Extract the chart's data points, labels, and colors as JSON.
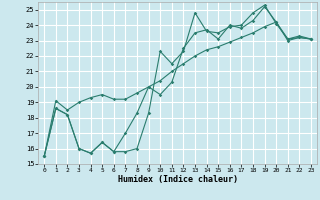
{
  "xlabel": "Humidex (Indice chaleur)",
  "background_color": "#cce8ee",
  "grid_color": "#ffffff",
  "line_color": "#2a7d6e",
  "xlim": [
    -0.5,
    23.5
  ],
  "ylim": [
    15,
    25.5
  ],
  "xticks": [
    0,
    1,
    2,
    3,
    4,
    5,
    6,
    7,
    8,
    9,
    10,
    11,
    12,
    13,
    14,
    15,
    16,
    17,
    18,
    19,
    20,
    21,
    22,
    23
  ],
  "yticks": [
    15,
    16,
    17,
    18,
    19,
    20,
    21,
    22,
    23,
    24,
    25
  ],
  "s1_x": [
    0,
    1,
    2,
    3,
    4,
    5,
    6,
    7,
    8,
    9,
    10,
    11,
    12,
    13,
    14,
    15,
    16,
    17,
    18,
    19,
    20,
    21,
    22,
    23
  ],
  "s1_y": [
    15.5,
    18.6,
    18.2,
    16.0,
    15.7,
    16.4,
    15.8,
    17.0,
    18.3,
    20.0,
    19.5,
    20.3,
    22.5,
    23.5,
    23.7,
    23.1,
    24.0,
    23.8,
    24.3,
    25.2,
    24.2,
    23.1,
    23.2,
    23.1
  ],
  "s2_x": [
    0,
    1,
    2,
    3,
    4,
    5,
    6,
    7,
    8,
    9,
    10,
    11,
    12,
    13,
    14,
    15,
    16,
    17,
    18,
    19,
    20,
    21,
    22,
    23
  ],
  "s2_y": [
    15.5,
    18.6,
    18.2,
    16.0,
    15.7,
    16.4,
    15.8,
    15.8,
    16.0,
    18.3,
    22.3,
    21.5,
    22.3,
    24.8,
    23.6,
    23.5,
    23.9,
    24.0,
    24.8,
    25.3,
    24.1,
    23.1,
    23.3,
    23.1
  ],
  "s3_x": [
    0,
    1,
    2,
    3,
    4,
    5,
    6,
    7,
    8,
    9,
    10,
    11,
    12,
    13,
    14,
    15,
    16,
    17,
    18,
    19,
    20,
    21,
    22,
    23
  ],
  "s3_y": [
    15.5,
    19.1,
    18.5,
    19.0,
    19.3,
    19.5,
    19.2,
    19.2,
    19.6,
    20.0,
    20.4,
    21.0,
    21.5,
    22.0,
    22.4,
    22.6,
    22.9,
    23.2,
    23.5,
    23.9,
    24.2,
    23.0,
    23.2,
    23.1
  ]
}
